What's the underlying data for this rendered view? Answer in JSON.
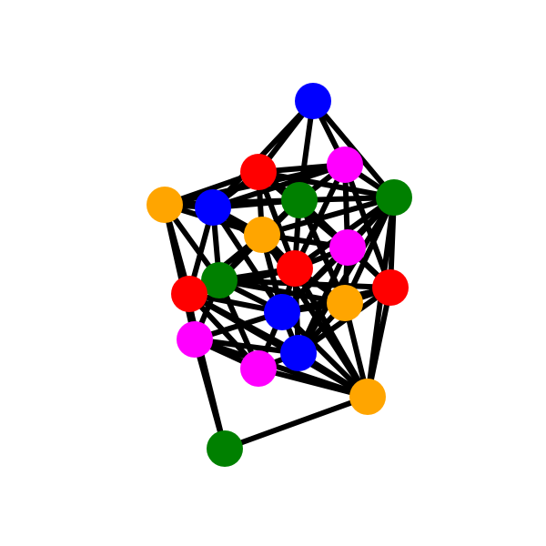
{
  "graph": {
    "node_colors": {
      "orange": "#FFA500",
      "blue": "#0000FF",
      "red": "#FF0000",
      "magenta": "#FF00FF",
      "green": "#008000"
    },
    "edge_color": "#000000",
    "nodes": [
      {
        "id": "n0",
        "color": "blue"
      },
      {
        "id": "n1",
        "color": "red"
      },
      {
        "id": "n2",
        "color": "magenta"
      },
      {
        "id": "n3",
        "color": "orange"
      },
      {
        "id": "n4",
        "color": "blue"
      },
      {
        "id": "n5",
        "color": "green"
      },
      {
        "id": "n6",
        "color": "green"
      },
      {
        "id": "n7",
        "color": "orange"
      },
      {
        "id": "n8",
        "color": "magenta"
      },
      {
        "id": "n9",
        "color": "red"
      },
      {
        "id": "n10",
        "color": "green"
      },
      {
        "id": "n11",
        "color": "red"
      },
      {
        "id": "n12",
        "color": "orange"
      },
      {
        "id": "n13",
        "color": "red"
      },
      {
        "id": "n14",
        "color": "blue"
      },
      {
        "id": "n15",
        "color": "magenta"
      },
      {
        "id": "n16",
        "color": "blue"
      },
      {
        "id": "n17",
        "color": "magenta"
      },
      {
        "id": "n18",
        "color": "orange"
      },
      {
        "id": "n19",
        "color": "green"
      }
    ],
    "edges": [
      [
        "n0",
        "n1"
      ],
      [
        "n0",
        "n2"
      ],
      [
        "n0",
        "n5"
      ],
      [
        "n0",
        "n4"
      ],
      [
        "n0",
        "n6"
      ],
      [
        "n3",
        "n1"
      ],
      [
        "n3",
        "n4"
      ],
      [
        "n3",
        "n2"
      ],
      [
        "n3",
        "n11"
      ],
      [
        "n3",
        "n10"
      ],
      [
        "n3",
        "n7"
      ],
      [
        "n3",
        "n15"
      ],
      [
        "n3",
        "n19"
      ],
      [
        "n3",
        "n5"
      ],
      [
        "n1",
        "n2"
      ],
      [
        "n1",
        "n5"
      ],
      [
        "n1",
        "n6"
      ],
      [
        "n1",
        "n4"
      ],
      [
        "n1",
        "n7"
      ],
      [
        "n1",
        "n8"
      ],
      [
        "n1",
        "n9"
      ],
      [
        "n2",
        "n6"
      ],
      [
        "n2",
        "n5"
      ],
      [
        "n2",
        "n8"
      ],
      [
        "n2",
        "n9"
      ],
      [
        "n2",
        "n13"
      ],
      [
        "n2",
        "n4"
      ],
      [
        "n6",
        "n5"
      ],
      [
        "n6",
        "n8"
      ],
      [
        "n6",
        "n13"
      ],
      [
        "n6",
        "n12"
      ],
      [
        "n6",
        "n18"
      ],
      [
        "n6",
        "n9"
      ],
      [
        "n6",
        "n7"
      ],
      [
        "n6",
        "n14"
      ],
      [
        "n6",
        "n16"
      ],
      [
        "n4",
        "n5"
      ],
      [
        "n4",
        "n7"
      ],
      [
        "n4",
        "n10"
      ],
      [
        "n4",
        "n9"
      ],
      [
        "n4",
        "n11"
      ],
      [
        "n4",
        "n14"
      ],
      [
        "n5",
        "n7"
      ],
      [
        "n5",
        "n8"
      ],
      [
        "n5",
        "n9"
      ],
      [
        "n5",
        "n10"
      ],
      [
        "n5",
        "n13"
      ],
      [
        "n7",
        "n9"
      ],
      [
        "n7",
        "n10"
      ],
      [
        "n7",
        "n11"
      ],
      [
        "n7",
        "n8"
      ],
      [
        "n7",
        "n14"
      ],
      [
        "n8",
        "n9"
      ],
      [
        "n8",
        "n13"
      ],
      [
        "n8",
        "n12"
      ],
      [
        "n8",
        "n14"
      ],
      [
        "n8",
        "n16"
      ],
      [
        "n9",
        "n10"
      ],
      [
        "n9",
        "n11"
      ],
      [
        "n9",
        "n12"
      ],
      [
        "n9",
        "n14"
      ],
      [
        "n9",
        "n16"
      ],
      [
        "n10",
        "n11"
      ],
      [
        "n10",
        "n14"
      ],
      [
        "n10",
        "n15"
      ],
      [
        "n10",
        "n17"
      ],
      [
        "n10",
        "n12"
      ],
      [
        "n11",
        "n14"
      ],
      [
        "n11",
        "n15"
      ],
      [
        "n11",
        "n17"
      ],
      [
        "n11",
        "n16"
      ],
      [
        "n12",
        "n13"
      ],
      [
        "n12",
        "n14"
      ],
      [
        "n12",
        "n16"
      ],
      [
        "n12",
        "n18"
      ],
      [
        "n13",
        "n16"
      ],
      [
        "n13",
        "n18"
      ],
      [
        "n13",
        "n14"
      ],
      [
        "n14",
        "n15"
      ],
      [
        "n14",
        "n16"
      ],
      [
        "n14",
        "n17"
      ],
      [
        "n15",
        "n17"
      ],
      [
        "n15",
        "n16"
      ],
      [
        "n15",
        "n19"
      ],
      [
        "n16",
        "n17"
      ],
      [
        "n16",
        "n18"
      ],
      [
        "n17",
        "n18"
      ],
      [
        "n18",
        "n19"
      ],
      [
        "n18",
        "n7"
      ],
      [
        "n18",
        "n9"
      ],
      [
        "n18",
        "n14"
      ],
      [
        "n18",
        "n15"
      ],
      [
        "n18",
        "n11"
      ],
      [
        "n10",
        "n13"
      ],
      [
        "n5",
        "n12"
      ],
      [
        "n14",
        "n13"
      ]
    ]
  }
}
